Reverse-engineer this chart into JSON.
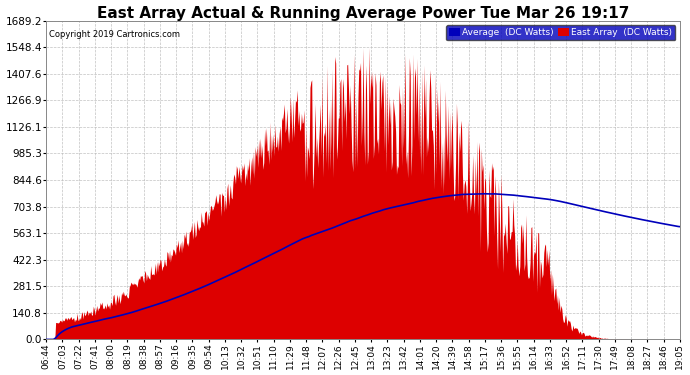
{
  "title": "East Array Actual & Running Average Power Tue Mar 26 19:17",
  "copyright": "Copyright 2019 Cartronics.com",
  "legend_labels": [
    "Average  (DC Watts)",
    "East Array  (DC Watts)"
  ],
  "yticks": [
    0.0,
    140.8,
    281.5,
    422.3,
    563.1,
    703.8,
    844.6,
    985.3,
    1126.1,
    1266.9,
    1407.6,
    1548.4,
    1689.2
  ],
  "ylim": [
    0.0,
    1689.2
  ],
  "background_color": "#ffffff",
  "grid_color": "#bbbbbb",
  "fill_color": "#dd0000",
  "line_color": "#0000bb",
  "title_fontsize": 11,
  "xlabel_rotation": 90,
  "xtick_fontsize": 6.5,
  "ytick_fontsize": 7.5,
  "figwidth": 6.9,
  "figheight": 3.75,
  "dpi": 100,
  "x_labels": [
    "06:44",
    "07:03",
    "07:22",
    "07:41",
    "08:00",
    "08:19",
    "08:38",
    "08:57",
    "09:16",
    "09:35",
    "09:54",
    "10:13",
    "10:32",
    "10:51",
    "11:10",
    "11:29",
    "11:48",
    "12:07",
    "12:26",
    "12:45",
    "13:04",
    "13:23",
    "13:42",
    "14:01",
    "14:20",
    "14:39",
    "14:58",
    "15:17",
    "15:36",
    "15:55",
    "16:14",
    "16:33",
    "16:52",
    "17:11",
    "17:30",
    "17:49",
    "18:08",
    "18:27",
    "18:46",
    "19:05"
  ]
}
